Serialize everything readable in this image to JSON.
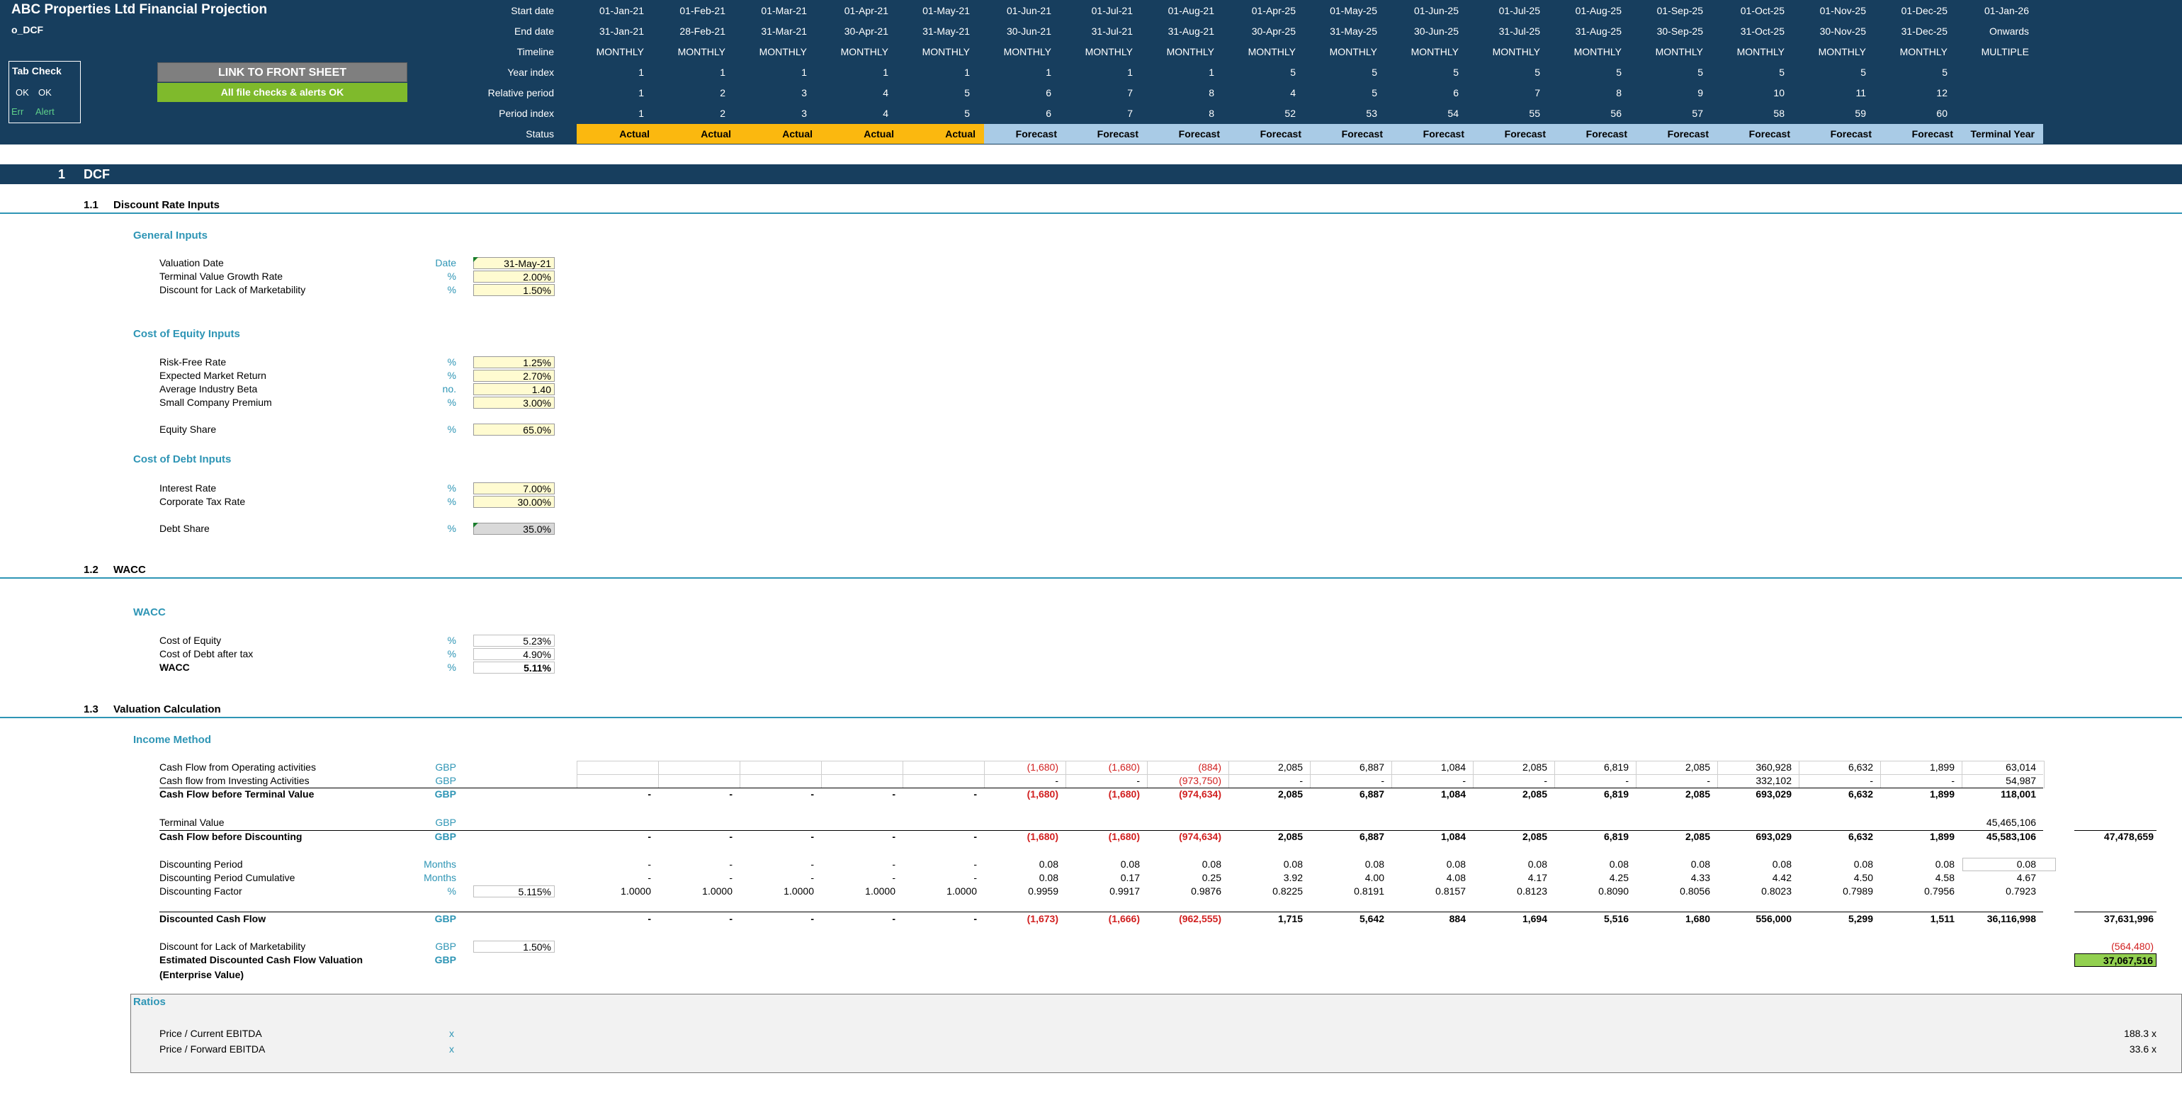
{
  "header": {
    "title": "ABC Properties Ltd Financial Projection",
    "sheet": "o_DCF",
    "tab_check": {
      "label": "Tab Check",
      "ok1": "OK",
      "ok2": "OK",
      "err": "Err",
      "alert": "Alert"
    },
    "link_button": "LINK TO FRONT SHEET",
    "checks_status": "All file checks & alerts OK",
    "row_labels": [
      "Start date",
      "End date",
      "Timeline",
      "Year index",
      "Relative period",
      "Period index",
      "Status"
    ],
    "start_dates": [
      "01-Jan-21",
      "01-Feb-21",
      "01-Mar-21",
      "01-Apr-21",
      "01-May-21",
      "01-Jun-21",
      "01-Jul-21",
      "01-Aug-21",
      "01-Apr-25",
      "01-May-25",
      "01-Jun-25",
      "01-Jul-25",
      "01-Aug-25",
      "01-Sep-25",
      "01-Oct-25",
      "01-Nov-25",
      "01-Dec-25",
      "01-Jan-26"
    ],
    "end_dates": [
      "31-Jan-21",
      "28-Feb-21",
      "31-Mar-21",
      "30-Apr-21",
      "31-May-21",
      "30-Jun-21",
      "31-Jul-21",
      "31-Aug-21",
      "30-Apr-25",
      "31-May-25",
      "30-Jun-25",
      "31-Jul-25",
      "31-Aug-25",
      "30-Sep-25",
      "31-Oct-25",
      "30-Nov-25",
      "31-Dec-25",
      "Onwards"
    ],
    "timeline": [
      "MONTHLY",
      "MONTHLY",
      "MONTHLY",
      "MONTHLY",
      "MONTHLY",
      "MONTHLY",
      "MONTHLY",
      "MONTHLY",
      "MONTHLY",
      "MONTHLY",
      "MONTHLY",
      "MONTHLY",
      "MONTHLY",
      "MONTHLY",
      "MONTHLY",
      "MONTHLY",
      "MONTHLY",
      "MULTIPLE"
    ],
    "year_index": [
      "1",
      "1",
      "1",
      "1",
      "1",
      "1",
      "1",
      "1",
      "5",
      "5",
      "5",
      "5",
      "5",
      "5",
      "5",
      "5",
      "5",
      ""
    ],
    "relative_period": [
      "1",
      "2",
      "3",
      "4",
      "5",
      "6",
      "7",
      "8",
      "4",
      "5",
      "6",
      "7",
      "8",
      "9",
      "10",
      "11",
      "12",
      ""
    ],
    "period_index": [
      "1",
      "2",
      "3",
      "4",
      "5",
      "6",
      "7",
      "8",
      "52",
      "53",
      "54",
      "55",
      "56",
      "57",
      "58",
      "59",
      "60",
      ""
    ],
    "status": [
      "Actual",
      "Actual",
      "Actual",
      "Actual",
      "Actual",
      "Forecast",
      "Forecast",
      "Forecast",
      "Forecast",
      "Forecast",
      "Forecast",
      "Forecast",
      "Forecast",
      "Forecast",
      "Forecast",
      "Forecast",
      "Forecast",
      "Terminal Year"
    ]
  },
  "section": {
    "number": "1",
    "title": "DCF"
  },
  "discount_rate_inputs": {
    "number": "1.1",
    "title": "Discount Rate Inputs",
    "general": {
      "title": "General Inputs",
      "rows": [
        {
          "label": "Valuation Date",
          "unit": "Date",
          "value": "31-May-21"
        },
        {
          "label": "Terminal Value Growth Rate",
          "unit": "%",
          "value": "2.00%"
        },
        {
          "label": "Discount for Lack of Marketability",
          "unit": "%",
          "value": "1.50%"
        }
      ]
    },
    "equity": {
      "title": "Cost of Equity Inputs",
      "rows": [
        {
          "label": "Risk-Free Rate",
          "unit": "%",
          "value": "1.25%"
        },
        {
          "label": "Expected Market Return",
          "unit": "%",
          "value": "2.70%"
        },
        {
          "label": "Average Industry Beta",
          "unit": "no.",
          "value": "1.40"
        },
        {
          "label": "Small Company Premium",
          "unit": "%",
          "value": "3.00%"
        }
      ],
      "share": {
        "label": "Equity Share",
        "unit": "%",
        "value": "65.0%"
      }
    },
    "debt": {
      "title": "Cost of Debt Inputs",
      "rows": [
        {
          "label": "Interest Rate",
          "unit": "%",
          "value": "7.00%"
        },
        {
          "label": "Corporate Tax Rate",
          "unit": "%",
          "value": "30.00%"
        }
      ],
      "share": {
        "label": "Debt Share",
        "unit": "%",
        "value": "35.0%"
      }
    }
  },
  "wacc": {
    "number": "1.2",
    "title": "WACC",
    "subtitle": "WACC",
    "rows": [
      {
        "label": "Cost of Equity",
        "unit": "%",
        "value": "5.23%"
      },
      {
        "label": "Cost of Debt after tax",
        "unit": "%",
        "value": "4.90%"
      },
      {
        "label": "WACC",
        "unit": "%",
        "value": "5.11%"
      }
    ]
  },
  "valuation": {
    "number": "1.3",
    "title": "Valuation Calculation",
    "subtitle": "Income Method",
    "rows": [
      {
        "label": "Cash Flow from Operating activities",
        "unit": "GBP",
        "bold": false,
        "values": [
          "",
          "",
          "",
          "",
          "",
          "(1,680)",
          "(1,680)",
          "(884)",
          "2,085",
          "6,887",
          "1,084",
          "2,085",
          "6,819",
          "2,085",
          "360,928",
          "6,632",
          "1,899",
          "63,014"
        ],
        "total": ""
      },
      {
        "label": "Cash flow from Investing Activities",
        "unit": "GBP",
        "bold": false,
        "values": [
          "",
          "",
          "",
          "",
          "",
          "-",
          "-",
          "(973,750)",
          "-",
          "-",
          "-",
          "-",
          "-",
          "-",
          "332,102",
          "-",
          "-",
          "54,987"
        ],
        "total": ""
      },
      {
        "label": "Cash Flow before Terminal Value",
        "unit": "GBP",
        "bold": true,
        "values": [
          "-",
          "-",
          "-",
          "-",
          "-",
          "(1,680)",
          "(1,680)",
          "(974,634)",
          "2,085",
          "6,887",
          "1,084",
          "2,085",
          "6,819",
          "2,085",
          "693,029",
          "6,632",
          "1,899",
          "118,001"
        ],
        "total": ""
      },
      {
        "label": "Terminal Value",
        "unit": "GBP",
        "bold": false,
        "values": [
          "",
          "",
          "",
          "",
          "",
          "",
          "",
          "",
          "",
          "",
          "",
          "",
          "",
          "",
          "",
          "",
          "",
          "45,465,106"
        ],
        "total": ""
      },
      {
        "label": "Cash Flow before Discounting",
        "unit": "GBP",
        "bold": true,
        "values": [
          "-",
          "-",
          "-",
          "-",
          "-",
          "(1,680)",
          "(1,680)",
          "(974,634)",
          "2,085",
          "6,887",
          "1,084",
          "2,085",
          "6,819",
          "2,085",
          "693,029",
          "6,632",
          "1,899",
          "45,583,106"
        ],
        "total": "47,478,659"
      },
      {
        "label": "Discounting Period",
        "unit": "Months",
        "bold": false,
        "values": [
          "-",
          "-",
          "-",
          "-",
          "-",
          "0.08",
          "0.08",
          "0.08",
          "0.08",
          "0.08",
          "0.08",
          "0.08",
          "0.08",
          "0.08",
          "0.08",
          "0.08",
          "0.08",
          "0.08"
        ],
        "total": ""
      },
      {
        "label": "Discounting Period Cumulative",
        "unit": "Months",
        "bold": false,
        "values": [
          "-",
          "-",
          "-",
          "-",
          "-",
          "0.08",
          "0.17",
          "0.25",
          "3.92",
          "4.00",
          "4.08",
          "4.17",
          "4.25",
          "4.33",
          "4.42",
          "4.50",
          "4.58",
          "4.67"
        ],
        "total": ""
      },
      {
        "label": "Discounting Factor",
        "unit": "%",
        "bold": false,
        "input": "5.115%",
        "values": [
          "1.0000",
          "1.0000",
          "1.0000",
          "1.0000",
          "1.0000",
          "0.9959",
          "0.9917",
          "0.9876",
          "0.8225",
          "0.8191",
          "0.8157",
          "0.8123",
          "0.8090",
          "0.8056",
          "0.8023",
          "0.7989",
          "0.7956",
          "0.7923"
        ],
        "total": ""
      },
      {
        "label": "Discounted Cash Flow",
        "unit": "GBP",
        "bold": true,
        "values": [
          "-",
          "-",
          "-",
          "-",
          "-",
          "(1,673)",
          "(1,666)",
          "(962,555)",
          "1,715",
          "5,642",
          "884",
          "1,694",
          "5,516",
          "1,680",
          "556,000",
          "5,299",
          "1,511",
          "36,116,998"
        ],
        "total": "37,631,996"
      },
      {
        "label": "Discount for Lack of Marketability",
        "unit": "GBP",
        "bold": false,
        "input": "1.50%",
        "values": [],
        "total": "(564,480)"
      },
      {
        "label": "Estimated Discounted Cash Flow Valuation",
        "unit": "GBP",
        "bold": true,
        "values": [],
        "total": "37,067,516"
      }
    ],
    "ev_label": "(Enterprise Value)"
  },
  "ratios": {
    "title": "Ratios",
    "rows": [
      {
        "label": "Price / Current EBITDA",
        "unit": "x",
        "value": "188.3 x"
      },
      {
        "label": "Price / Forward EBITDA",
        "unit": "x",
        "value": "33.6 x"
      }
    ]
  },
  "colors": {
    "header_bg": "#173e5e",
    "actual": "#fbb80f",
    "forecast": "#a9cbe6",
    "accent": "#2e95b5",
    "link_btn": "#7f7f7f",
    "ok_btn": "#7fba2c",
    "total_hl": "#92d050"
  }
}
